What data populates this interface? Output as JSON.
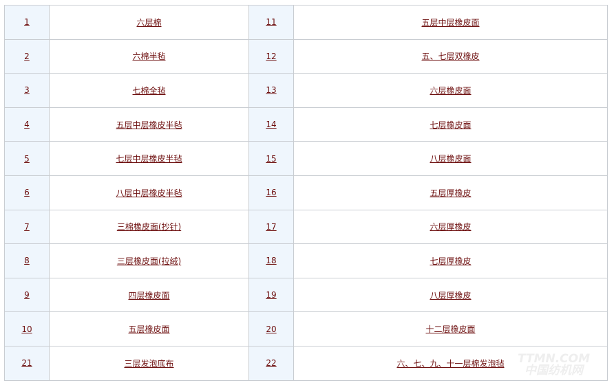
{
  "rows": [
    {
      "n1": "1",
      "t1": "六层棉",
      "n2": "11",
      "t2": "五层中层橡皮面"
    },
    {
      "n1": "2",
      "t1": "六棉半毡",
      "n2": "12",
      "t2": "五、七层双橡皮"
    },
    {
      "n1": "3",
      "t1": "七棉全毡",
      "n2": "13",
      "t2": "六层橡皮面"
    },
    {
      "n1": "4",
      "t1": "五层中层橡皮半毡",
      "n2": "14",
      "t2": "七层橡皮面"
    },
    {
      "n1": "5",
      "t1": "七层中层橡皮半毡",
      "n2": "15",
      "t2": "八层橡皮面"
    },
    {
      "n1": "6",
      "t1": "八层中层橡皮半毡",
      "n2": "16",
      "t2": "五层厚橡皮"
    },
    {
      "n1": "7",
      "t1": "三棉橡皮面(抄针)",
      "n2": "17",
      "t2": "六层厚橡皮"
    },
    {
      "n1": "8",
      "t1": "三层橡皮面(拉绒)",
      "n2": "18",
      "t2": "七层厚橡皮"
    },
    {
      "n1": "9",
      "t1": "四层橡皮面",
      "n2": "19",
      "t2": "八层厚橡皮"
    },
    {
      "n1": "10",
      "t1": "五层橡皮面",
      "n2": "20",
      "t2": "十二层橡皮面"
    },
    {
      "n1": "21",
      "t1": "三层发泡底布",
      "n2": "22",
      "t2": "六、七、九、十一层棉发泡毡"
    }
  ],
  "watermark": {
    "line1": "TTMN.COM",
    "line2": "中国纺机网"
  },
  "colors": {
    "link": "#6e1010",
    "num_bg": "#eff6fd",
    "border": "#c9cdd2"
  }
}
